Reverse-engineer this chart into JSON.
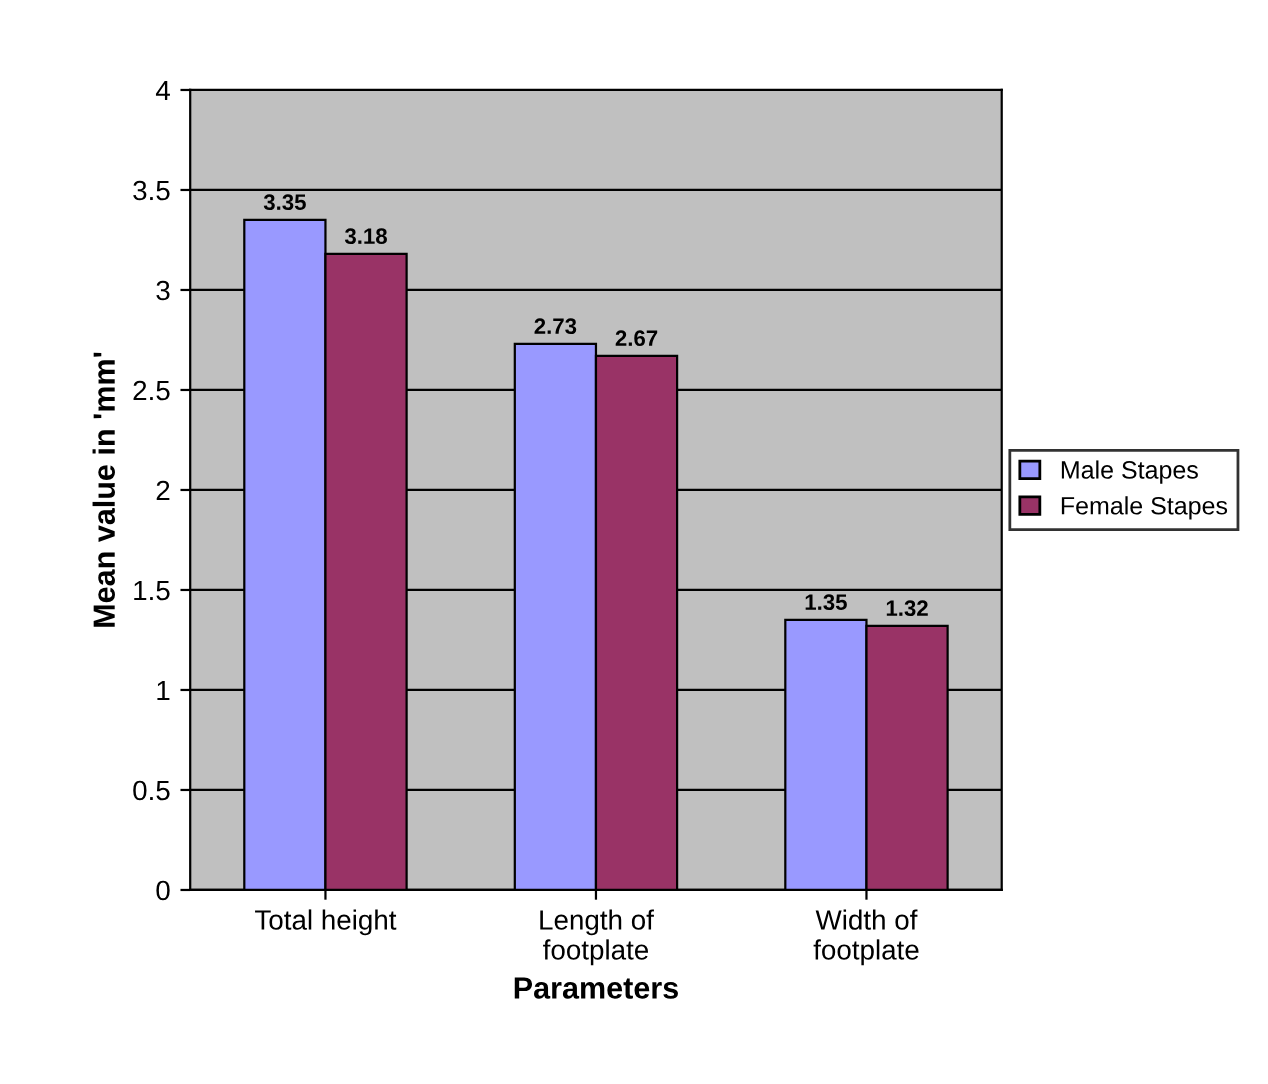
{
  "chart_data": {
    "type": "bar",
    "xlabel": "Parameters",
    "ylabel": "Mean value in 'mm'",
    "categories": [
      "Total height",
      "Length of\nfootplate",
      "Width of\nfootplate"
    ],
    "series": [
      {
        "name": "Male Stapes",
        "color": "#9999ff",
        "values": [
          3.35,
          2.73,
          1.35
        ]
      },
      {
        "name": "Female Stapes",
        "color": "#993366",
        "values": [
          3.18,
          2.67,
          1.32
        ]
      }
    ],
    "ylim": [
      0,
      4
    ],
    "yticks": [
      0,
      0.5,
      1,
      1.5,
      2,
      2.5,
      3,
      3.5,
      4
    ],
    "grid": "y",
    "legend": "right",
    "data_labels": true
  }
}
